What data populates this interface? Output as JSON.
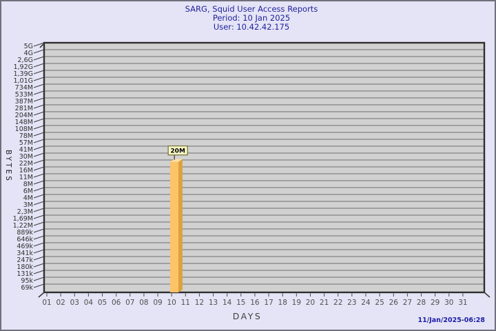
{
  "header": {
    "title": "SARG, Squid User Access Reports",
    "period_line": "Period: 10 Jan 2025",
    "user_line": "User: 10.42.42.175"
  },
  "footer": {
    "timestamp": "11/Jan/2025-06:28"
  },
  "chart_data": {
    "type": "bar",
    "title": "SARG, Squid User Access Reports",
    "subtitle": [
      "Period: 10 Jan 2025",
      "User: 10.42.42.175"
    ],
    "xlabel": "DAYS",
    "ylabel": "BYTES",
    "y_scale": "log",
    "grid": true,
    "y_ticks": [
      "5G",
      "4G",
      "2,6G",
      "1,92G",
      "1,39G",
      "1,01G",
      "734M",
      "533M",
      "387M",
      "281M",
      "204M",
      "148M",
      "108M",
      "78M",
      "57M",
      "41M",
      "30M",
      "22M",
      "16M",
      "11M",
      "8M",
      "6M",
      "4M",
      "3M",
      "2,3M",
      "1,69M",
      "1,22M",
      "889k",
      "646k",
      "469k",
      "341k",
      "247k",
      "180k",
      "131k",
      "95k",
      "69k"
    ],
    "y_top_value": 5000000000,
    "y_bottom_value": 69000,
    "categories": [
      "01",
      "02",
      "03",
      "04",
      "05",
      "06",
      "07",
      "08",
      "09",
      "10",
      "11",
      "12",
      "13",
      "14",
      "15",
      "16",
      "17",
      "18",
      "19",
      "20",
      "21",
      "22",
      "23",
      "24",
      "25",
      "26",
      "27",
      "28",
      "29",
      "30",
      "31"
    ],
    "values": [
      null,
      null,
      null,
      null,
      null,
      null,
      null,
      null,
      null,
      20000000,
      null,
      null,
      null,
      null,
      null,
      null,
      null,
      null,
      null,
      null,
      null,
      null,
      null,
      null,
      null,
      null,
      null,
      null,
      null,
      null,
      null
    ],
    "bar_labels": [
      null,
      null,
      null,
      null,
      null,
      null,
      null,
      null,
      null,
      "20M",
      null,
      null,
      null,
      null,
      null,
      null,
      null,
      null,
      null,
      null,
      null,
      null,
      null,
      null,
      null,
      null,
      null,
      null,
      null,
      null,
      null
    ],
    "colors": {
      "background": "#e4e4f6",
      "wall_fill": "#d1d1d1",
      "wall_border": "#2f2f2f",
      "gridline": "#6e6e6e",
      "bar_front": "#fcc367",
      "bar_side": "#dca23e",
      "bar_top": "#ffdfa2",
      "label_box_fill": "#fafac8",
      "label_box_border": "#6e6e32",
      "title_text": "#1f1f9b",
      "timestamp_text": "#1d1da6",
      "y_tick_text": "#2e2e2e",
      "x_tick_text": "#4e4e4e"
    }
  }
}
